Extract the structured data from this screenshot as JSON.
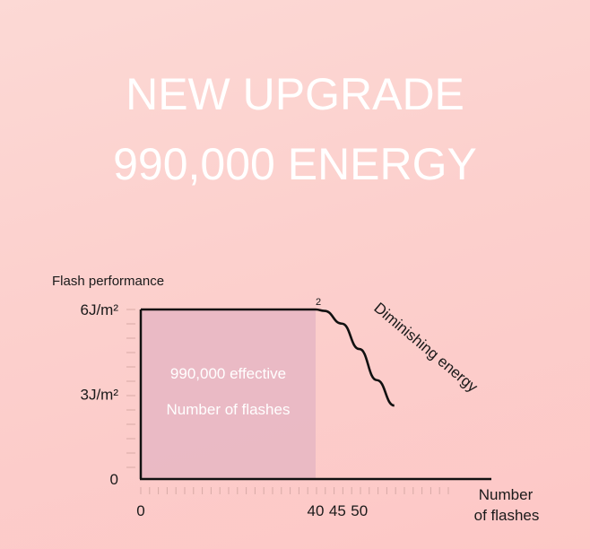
{
  "headline": {
    "line1": "NEW UPGRADE",
    "line2": "990,000 ENERGY"
  },
  "chart_data": {
    "type": "area",
    "ylabel": "Flash performance",
    "xlabel": [
      "Number",
      "of flashes"
    ],
    "y_ticks": [
      {
        "value": 0,
        "label": "0"
      },
      {
        "value": 3,
        "label": "3J/m²"
      },
      {
        "value": 6,
        "label": "6J/m²"
      }
    ],
    "x_ticks": [
      {
        "value": 0,
        "label": "0"
      },
      {
        "value": 40,
        "label": "40"
      },
      {
        "value": 45,
        "label": "45"
      },
      {
        "value": 50,
        "label": "50"
      }
    ],
    "xlim": [
      0,
      60
    ],
    "ylim": [
      0,
      6.5
    ],
    "series": [
      {
        "values": [
          [
            0,
            6
          ],
          [
            40,
            6
          ],
          [
            42,
            5.95
          ],
          [
            46,
            5.5
          ],
          [
            50,
            4.6
          ],
          [
            54,
            3.5
          ],
          [
            58,
            2.6
          ]
        ]
      }
    ],
    "effective_region": {
      "x": [
        0,
        40
      ],
      "label_lines": [
        "990,000 effective",
        "Number of flashes"
      ]
    },
    "annotations": [
      {
        "text": "2",
        "x": 40,
        "y": 6
      },
      {
        "text": "Diminishing energy"
      }
    ],
    "colors": {
      "region": "#e9b8c4",
      "line": "#111111",
      "axis": "#111111",
      "background": "#fcd2cf"
    }
  }
}
